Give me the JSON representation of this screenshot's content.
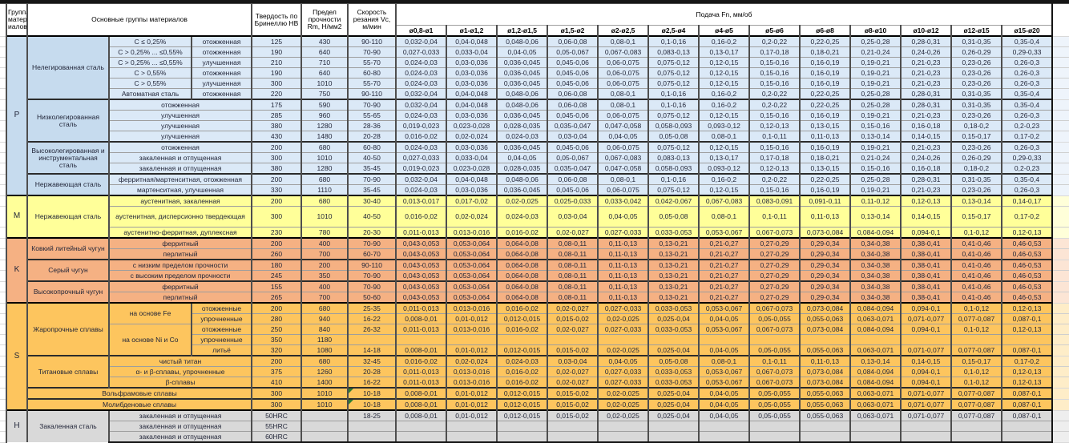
{
  "header": {
    "col_group": "Группа матер иалов",
    "col_main": "Основные группы материалов",
    "col_hb": "Твердость по Бринеллю HB",
    "col_rm": "Предел прочности Rm, Н/мм2",
    "col_vc": "Скорость резания Vc, м/мин",
    "feed_title": "Подача Fn, мм/об",
    "diameters": [
      "ø0,8-ø1",
      "ø1-ø1,2",
      "ø1,2-ø1,5",
      "ø1,5-ø2",
      "ø2-ø2,5",
      "ø2,5-ø4",
      "ø4-ø5",
      "ø5-ø6",
      "ø6-ø8",
      "ø8-ø10",
      "ø10-ø12",
      "ø12-ø15",
      "ø15-ø20"
    ]
  },
  "colors": {
    "p_group": "#dbe9f7",
    "m_group": "#ffff99",
    "k_group": "#f5b183",
    "s_group": "#fdc55e",
    "h_group": "#d9d9d9",
    "marker_green": "#2e7d32"
  },
  "feed_sets": {
    "A1": [
      "0,032-0,04",
      "0,04-0,048",
      "0,048-0,06",
      "0,06-0,08",
      "0,08-0,1",
      "0,1-0,16",
      "0,16-0,2",
      "0,2-0,22",
      "0,22-0,25",
      "0,25-0,28",
      "0,28-0,31",
      "0,31-0,35",
      "0,35-0,4"
    ],
    "A2": [
      "0,027-0,033",
      "0,033-0,04",
      "0,04-0,05",
      "0,05-0,067",
      "0,067-0,083",
      "0,083-0,13",
      "0,13-0,17",
      "0,17-0,18",
      "0,18-0,21",
      "0,21-0,24",
      "0,24-0,26",
      "0,26-0,29",
      "0,29-0,33"
    ],
    "A3": [
      "0,024-0,03",
      "0,03-0,036",
      "0,036-0,045",
      "0,045-0,06",
      "0,06-0,075",
      "0,075-0,12",
      "0,12-0,15",
      "0,15-0,16",
      "0,16-0,19",
      "0,19-0,21",
      "0,21-0,23",
      "0,23-0,26",
      "0,26-0,3"
    ],
    "B": [
      "0,019-0,023",
      "0,023-0,028",
      "0,028-0,035",
      "0,035-0,047",
      "0,047-0,058",
      "0,058-0,093",
      "0,093-0,12",
      "0,12-0,13",
      "0,13-0,15",
      "0,15-0,16",
      "0,16-0,18",
      "0,18-0,2",
      "0,2-0,23"
    ],
    "C": [
      "0,016-0,02",
      "0,02-0,024",
      "0,024-0,03",
      "0,03-0,04",
      "0,04-0,05",
      "0,05-0,08",
      "0,08-0,1",
      "0,1-0,11",
      "0,11-0,13",
      "0,13-0,14",
      "0,14-0,15",
      "0,15-0,17",
      "0,17-0,2"
    ],
    "M1": [
      "0,013-0,017",
      "0,017-0,02",
      "0,02-0,025",
      "0,025-0,033",
      "0,033-0,042",
      "0,042-0,067",
      "0,067-0,083",
      "0,083-0,091",
      "0,091-0,11",
      "0,11-0,12",
      "0,12-0,13",
      "0,13-0,14",
      "0,14-0,17"
    ],
    "M3": [
      "0,011-0,013",
      "0,013-0,016",
      "0,016-0,02",
      "0,02-0,027",
      "0,027-0,033",
      "0,033-0,053",
      "0,053-0,067",
      "0,067-0,073",
      "0,073-0,084",
      "0,084-0,094",
      "0,094-0,1",
      "0,1-0,12",
      "0,12-0,13"
    ],
    "K": [
      "0,043-0,053",
      "0,053-0,064",
      "0,064-0,08",
      "0,08-0,11",
      "0,11-0,13",
      "0,13-0,21",
      "0,21-0,27",
      "0,27-0,29",
      "0,29-0,34",
      "0,34-0,38",
      "0,38-0,41",
      "0,41-0,46",
      "0,46-0,53"
    ],
    "S2": [
      "0,008-0,01",
      "0,01-0,012",
      "0,012-0,015",
      "0,015-0,02",
      "0,02-0,025",
      "0,025-0,04",
      "0,04-0,05",
      "0,05-0,055",
      "0,055-0,063",
      "0,063-0,071",
      "0,071-0,077",
      "0,077-0,087",
      "0,087-0,1"
    ]
  },
  "rows": [
    {
      "g": "P",
      "sep": "g",
      "left": [
        {
          "t": "P",
          "rs": 15,
          "k": "letter"
        },
        {
          "t": "Нелегированная сталь",
          "rs": 6,
          "k": "lab"
        },
        {
          "t": "C ≤ 0,25%",
          "k": "cond"
        },
        {
          "t": "отожженная",
          "k": "cond"
        }
      ],
      "hb": "125",
      "rm": "430",
      "vc": "90-110",
      "f": "A1"
    },
    {
      "g": "P",
      "left": [
        {
          "t": "C > 0,25% ... ≤0,55%",
          "k": "cond"
        },
        {
          "t": "отожженная",
          "k": "cond"
        }
      ],
      "hb": "190",
      "rm": "640",
      "vc": "70-90",
      "f": "A2"
    },
    {
      "g": "P",
      "left": [
        {
          "t": "C > 0,25% ... ≤0,55%",
          "k": "cond"
        },
        {
          "t": "улучшенная",
          "k": "cond"
        }
      ],
      "hb": "210",
      "rm": "710",
      "vc": "55-70",
      "f": "A3"
    },
    {
      "g": "P",
      "left": [
        {
          "t": "C > 0,55%",
          "k": "cond"
        },
        {
          "t": "отожженная",
          "k": "cond"
        }
      ],
      "hb": "190",
      "rm": "640",
      "vc": "60-80",
      "f": "A3"
    },
    {
      "g": "P",
      "left": [
        {
          "t": "C > 0,55%",
          "k": "cond"
        },
        {
          "t": "улучшенная",
          "k": "cond"
        }
      ],
      "hb": "300",
      "rm": "1010",
      "vc": "55-70",
      "f": "A3"
    },
    {
      "g": "P",
      "left": [
        {
          "t": "Автоматная сталь",
          "k": "cond"
        },
        {
          "t": "отожженная",
          "k": "cond"
        }
      ],
      "hb": "220",
      "rm": "750",
      "vc": "90-110",
      "f": "A1"
    },
    {
      "g": "P",
      "sep": "b",
      "left": [
        {
          "t": "Низколегированная сталь",
          "rs": 4,
          "k": "lab"
        },
        {
          "t": "отожженная",
          "cs": 2,
          "k": "cond"
        }
      ],
      "hb": "175",
      "rm": "590",
      "vc": "70-90",
      "f": "A1"
    },
    {
      "g": "P",
      "left": [
        {
          "t": "улучшенная",
          "cs": 2,
          "k": "cond"
        }
      ],
      "hb": "285",
      "rm": "960",
      "vc": "55-65",
      "f": "A3"
    },
    {
      "g": "P",
      "left": [
        {
          "t": "улучшенная",
          "cs": 2,
          "k": "cond"
        }
      ],
      "hb": "380",
      "rm": "1280",
      "vc": "28-36",
      "f": "B"
    },
    {
      "g": "P",
      "left": [
        {
          "t": "улучшенная",
          "cs": 2,
          "k": "cond"
        }
      ],
      "hb": "430",
      "rm": "1480",
      "vc": "20-28",
      "f": "C"
    },
    {
      "g": "P",
      "sep": "b",
      "left": [
        {
          "t": "Высоколегированная и инструментальная сталь",
          "rs": 3,
          "k": "lab"
        },
        {
          "t": "отожженная",
          "cs": 2,
          "k": "cond"
        }
      ],
      "hb": "200",
      "rm": "680",
      "vc": "60-80",
      "f": "A3"
    },
    {
      "g": "P",
      "left": [
        {
          "t": "закаленная и отпущенная",
          "cs": 2,
          "k": "cond"
        }
      ],
      "hb": "300",
      "rm": "1010",
      "vc": "40-50",
      "f": "A2"
    },
    {
      "g": "P",
      "left": [
        {
          "t": "закаленная и отпущенная",
          "cs": 2,
          "k": "cond"
        }
      ],
      "hb": "380",
      "rm": "1280",
      "vc": "35-45",
      "f": "B"
    },
    {
      "g": "P",
      "sep": "b",
      "left": [
        {
          "t": "Нержавеющая сталь",
          "rs": 2,
          "k": "lab"
        },
        {
          "t": "ферритная/мартенситная, отожженная",
          "cs": 2,
          "k": "cond"
        }
      ],
      "hb": "200",
      "rm": "680",
      "vc": "70-90",
      "f": "A1"
    },
    {
      "g": "P",
      "left": [
        {
          "t": "мартенситная, улучшенная",
          "cs": 2,
          "k": "cond"
        }
      ],
      "hb": "330",
      "rm": "1110",
      "vc": "35-45",
      "f": "A3"
    },
    {
      "g": "M",
      "sep": "g",
      "left": [
        {
          "t": "M",
          "rs": 3,
          "k": "letter"
        },
        {
          "t": "Нержавеющая сталь",
          "rs": 3,
          "k": "lab"
        },
        {
          "t": "аустенитная, закаленная",
          "cs": 2,
          "k": "cond"
        }
      ],
      "hb": "200",
      "rm": "680",
      "vc": "30-40",
      "f": "M1"
    },
    {
      "g": "M",
      "tall": true,
      "left": [
        {
          "t": "аустенитная, дисперсионно твердеющая",
          "cs": 2,
          "k": "cond"
        }
      ],
      "hb": "300",
      "rm": "1010",
      "vc": "40-50",
      "f": "C"
    },
    {
      "g": "M",
      "left": [
        {
          "t": "аустенитно-ферритная, дуплексная",
          "cs": 2,
          "k": "cond"
        }
      ],
      "hb": "230",
      "rm": "780",
      "vc": "20-30",
      "f": "M3"
    },
    {
      "g": "K",
      "sep": "g",
      "left": [
        {
          "t": "K",
          "rs": 6,
          "k": "letter"
        },
        {
          "t": "Ковкий литейный чугун",
          "rs": 2,
          "k": "lab"
        },
        {
          "t": "ферритный",
          "cs": 2,
          "k": "cond"
        }
      ],
      "hb": "200",
      "rm": "400",
      "vc": "70-90",
      "f": "K"
    },
    {
      "g": "K",
      "left": [
        {
          "t": "перлитный",
          "cs": 2,
          "k": "cond"
        }
      ],
      "hb": "260",
      "rm": "700",
      "vc": "60-70",
      "f": "K"
    },
    {
      "g": "K",
      "sep": "b",
      "left": [
        {
          "t": "Серый чугун",
          "rs": 2,
          "k": "lab"
        },
        {
          "t": "с низким пределом прочности",
          "cs": 2,
          "k": "cond"
        }
      ],
      "hb": "180",
      "rm": "200",
      "vc": "90-110",
      "f": "K"
    },
    {
      "g": "K",
      "left": [
        {
          "t": "с высоким пределом прочности",
          "cs": 2,
          "k": "cond"
        }
      ],
      "hb": "245",
      "rm": "350",
      "vc": "70-90",
      "f": "K"
    },
    {
      "g": "K",
      "sep": "b",
      "left": [
        {
          "t": "Высокопрочный чугун",
          "rs": 2,
          "k": "lab"
        },
        {
          "t": "ферритный",
          "cs": 2,
          "k": "cond"
        }
      ],
      "hb": "155",
      "rm": "400",
      "vc": "70-90",
      "f": "K"
    },
    {
      "g": "K",
      "left": [
        {
          "t": "перлитный",
          "cs": 2,
          "k": "cond"
        }
      ],
      "hb": "265",
      "rm": "700",
      "vc": "50-60",
      "f": "K"
    },
    {
      "g": "S",
      "sep": "g",
      "left": [
        {
          "t": "S",
          "rs": 10,
          "k": "letter"
        },
        {
          "t": "Жаропрочные сплавы",
          "rs": 5,
          "k": "lab"
        },
        {
          "t": "на основе Fe",
          "rs": 2,
          "k": "cond"
        },
        {
          "t": "отожженные",
          "k": "cond"
        }
      ],
      "hb": "200",
      "rm": "680",
      "vc": "25-35",
      "f": "M3"
    },
    {
      "g": "S",
      "left": [
        {
          "t": "упрочненные",
          "k": "cond"
        }
      ],
      "hb": "280",
      "rm": "940",
      "vc": "16-22",
      "f": "S2"
    },
    {
      "g": "S",
      "left": [
        {
          "t": "на основе Ni и Co",
          "rs": 3,
          "k": "cond"
        },
        {
          "t": "отожженные",
          "k": "cond"
        }
      ],
      "hb": "250",
      "rm": "840",
      "vc": "26-32",
      "f": "M3"
    },
    {
      "g": "S",
      "left": [
        {
          "t": "упрочненные",
          "k": "cond"
        }
      ],
      "hb": "350",
      "rm": "1180",
      "vc": "",
      "f": null
    },
    {
      "g": "S",
      "left": [
        {
          "t": "литьё",
          "k": "cond"
        }
      ],
      "hb": "320",
      "rm": "1080",
      "vc": "14-18",
      "f": "S2"
    },
    {
      "g": "S",
      "sep": "b",
      "left": [
        {
          "t": "Титановые сплавы",
          "rs": 3,
          "k": "lab"
        },
        {
          "t": "чистый титан",
          "cs": 2,
          "k": "cond"
        }
      ],
      "hb": "200",
      "rm": "680",
      "vc": "32-45",
      "f": "C"
    },
    {
      "g": "S",
      "left": [
        {
          "t": "α- и β-сплавы, упрочненные",
          "cs": 2,
          "k": "cond"
        }
      ],
      "hb": "375",
      "rm": "1260",
      "vc": "20-28",
      "f": "M3"
    },
    {
      "g": "S",
      "left": [
        {
          "t": "β-сплавы",
          "cs": 2,
          "k": "cond"
        }
      ],
      "hb": "410",
      "rm": "1400",
      "vc": "16-22",
      "f": "M3"
    },
    {
      "g": "S",
      "sep": "b",
      "left": [
        {
          "t": "Вольфрамовые сплавы",
          "cs": 3,
          "k": "lab"
        }
      ],
      "hb": "300",
      "rm": "1010",
      "vc": "10-18",
      "gc": true,
      "f": "S2"
    },
    {
      "g": "S",
      "sep": "b",
      "left": [
        {
          "t": "Молибденовые сплавы",
          "cs": 3,
          "k": "lab"
        }
      ],
      "hb": "300",
      "rm": "1010",
      "vc": "10-18",
      "gc": true,
      "f": "S2"
    },
    {
      "g": "H",
      "sep": "g",
      "left": [
        {
          "t": "H",
          "rs": 3,
          "k": "letter"
        },
        {
          "t": "Закаленная сталь",
          "rs": 3,
          "k": "lab"
        },
        {
          "t": "закаленная и отпущенная",
          "cs": 2,
          "k": "cond"
        }
      ],
      "hb": "50HRC",
      "rm": "",
      "vc": "18-25",
      "f": "S2"
    },
    {
      "g": "H",
      "left": [
        {
          "t": "закаленная и отпущенная",
          "cs": 2,
          "k": "cond"
        }
      ],
      "hb": "55HRC",
      "rm": "",
      "vc": "",
      "f": null
    },
    {
      "g": "H",
      "left": [
        {
          "t": "закаленная и отпущенная",
          "cs": 2,
          "k": "cond"
        }
      ],
      "hb": "60HRC",
      "rm": "",
      "vc": "",
      "f": null
    }
  ]
}
